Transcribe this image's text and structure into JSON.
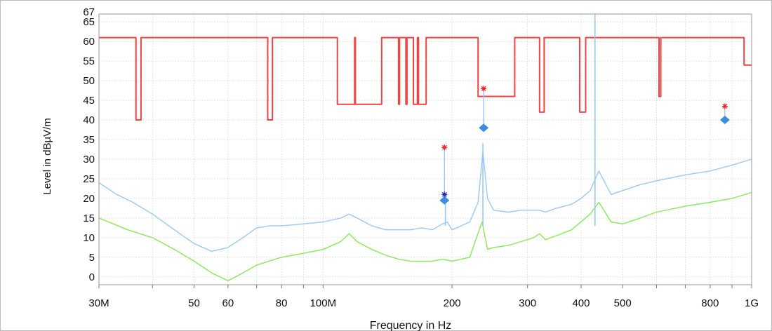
{
  "chart_data": {
    "type": "line",
    "xlabel": "Frequency in Hz",
    "ylabel": "Level in dBµV/m",
    "x_scale": "log",
    "xlim": [
      30000000,
      1000000000
    ],
    "ylim": [
      -2,
      67
    ],
    "grid": true,
    "x_ticks": [
      {
        "value": 30000000,
        "label": "30M"
      },
      {
        "value": 50000000,
        "label": "50"
      },
      {
        "value": 60000000,
        "label": "60"
      },
      {
        "value": 80000000,
        "label": "80"
      },
      {
        "value": 100000000,
        "label": "100M"
      },
      {
        "value": 200000000,
        "label": "200"
      },
      {
        "value": 300000000,
        "label": "300"
      },
      {
        "value": 400000000,
        "label": "400"
      },
      {
        "value": 500000000,
        "label": "500"
      },
      {
        "value": 800000000,
        "label": "800"
      },
      {
        "value": 1000000000,
        "label": "1G"
      }
    ],
    "y_ticks": [
      {
        "value": 0,
        "label": "0"
      },
      {
        "value": 5,
        "label": "5"
      },
      {
        "value": 10,
        "label": "10"
      },
      {
        "value": 15,
        "label": "15"
      },
      {
        "value": 20,
        "label": "20"
      },
      {
        "value": 25,
        "label": "25"
      },
      {
        "value": 30,
        "label": "30"
      },
      {
        "value": 35,
        "label": "35"
      },
      {
        "value": 40,
        "label": "40"
      },
      {
        "value": 45,
        "label": "45"
      },
      {
        "value": 50,
        "label": "50"
      },
      {
        "value": 55,
        "label": "55"
      },
      {
        "value": 60,
        "label": "60"
      },
      {
        "value": 65,
        "label": "65"
      },
      {
        "value": 67,
        "label": "67"
      }
    ],
    "colors": {
      "limit": "#ee4444",
      "peak": "#99c8f2",
      "average": "#88e855",
      "marker_peak": "#ee2222",
      "marker_quasi": "#2222cc",
      "marker_diamond": "#3a8ee0",
      "grid": "#c8c8c8"
    },
    "series": [
      {
        "key": "limit",
        "x": [
          30000000,
          36600000,
          36600000,
          37600000,
          37600000,
          74300000,
          74300000,
          76200000,
          76200000,
          108000000,
          108000000,
          118500000,
          118500000,
          119000000,
          119000000,
          137000000,
          137000000,
          150000000,
          150000000,
          150800000,
          150800000,
          156000000,
          156000000,
          157000000,
          157000000,
          162500000,
          162500000,
          166000000,
          166000000,
          167000000,
          167000000,
          174000000,
          174000000,
          230000000,
          230000000,
          280000000,
          280000000,
          320000000,
          320000000,
          328000000,
          328000000,
          397000000,
          397000000,
          410000000,
          410000000,
          608000000,
          608000000,
          614000000,
          614000000,
          960000000,
          960000000,
          1000000000
        ],
        "values": [
          61,
          61,
          40,
          40,
          61,
          61,
          40,
          40,
          61,
          61,
          44,
          44,
          61,
          61,
          44,
          44,
          61,
          61,
          44,
          44,
          61,
          61,
          44,
          44,
          61,
          61,
          44,
          44,
          61,
          61,
          44,
          44,
          61,
          61,
          46,
          46,
          61,
          61,
          42,
          42,
          61,
          61,
          42,
          42,
          61,
          61,
          46,
          46,
          61,
          61,
          54,
          54
        ]
      },
      {
        "key": "peak",
        "x": [
          30000000,
          33000000,
          36000000,
          40000000,
          45000000,
          50000000,
          55000000,
          60000000,
          65000000,
          70000000,
          75000000,
          80000000,
          90000000,
          100000000,
          110000000,
          115000000,
          120000000,
          130000000,
          140000000,
          150000000,
          160000000,
          170000000,
          180000000,
          190000000,
          195000000,
          200000000,
          210000000,
          220000000,
          230000000,
          236000000,
          242000000,
          250000000,
          270000000,
          290000000,
          310000000,
          320000000,
          330000000,
          350000000,
          380000000,
          400000000,
          420000000,
          440000000,
          470000000,
          500000000,
          550000000,
          600000000,
          700000000,
          800000000,
          900000000,
          1000000000
        ],
        "values": [
          24,
          21,
          19,
          16,
          12,
          8.5,
          6.5,
          7.5,
          10,
          12.5,
          13,
          13,
          13.5,
          14,
          15,
          16,
          15,
          13,
          12,
          12,
          12,
          12.5,
          12,
          13.5,
          14,
          12,
          13,
          14,
          19,
          32,
          20,
          17,
          16.5,
          17,
          17,
          17,
          16.5,
          17.5,
          18.5,
          20,
          22,
          27,
          21,
          22,
          23.5,
          24.5,
          26,
          27,
          28.5,
          30
        ]
      },
      {
        "key": "average",
        "x": [
          30000000,
          35000000,
          40000000,
          45000000,
          50000000,
          55000000,
          60000000,
          65000000,
          70000000,
          80000000,
          90000000,
          100000000,
          110000000,
          115000000,
          120000000,
          130000000,
          140000000,
          150000000,
          160000000,
          170000000,
          180000000,
          190000000,
          200000000,
          210000000,
          220000000,
          228000000,
          235000000,
          242000000,
          250000000,
          270000000,
          290000000,
          310000000,
          320000000,
          330000000,
          350000000,
          380000000,
          420000000,
          440000000,
          470000000,
          500000000,
          550000000,
          600000000,
          700000000,
          800000000,
          900000000,
          1000000000
        ],
        "values": [
          15,
          12,
          10,
          7,
          4,
          1,
          -1,
          1,
          3,
          5,
          6,
          7,
          9,
          11,
          9,
          7,
          5.5,
          4.5,
          4,
          4,
          4,
          4.5,
          4,
          4.5,
          5,
          10,
          14,
          7,
          7.5,
          8,
          9,
          10,
          11,
          9.5,
          10.5,
          12,
          16,
          19,
          14,
          13.5,
          15,
          16.5,
          18,
          19,
          20,
          21.5
        ]
      }
    ],
    "peak_spikes": [
      {
        "x": 193000000,
        "values": [
          21
        ]
      },
      {
        "x": 236000000,
        "values": [
          34
        ]
      },
      {
        "x": 431000000,
        "values": [
          67
        ]
      }
    ],
    "markers": [
      {
        "x": 192000000,
        "peak_star": 33,
        "quasi_star": 21,
        "diamond": 19.5
      },
      {
        "x": 237000000,
        "peak_star": 48,
        "diamond": 38
      },
      {
        "x": 866000000,
        "peak_star": 43.5,
        "diamond": 40
      }
    ]
  }
}
